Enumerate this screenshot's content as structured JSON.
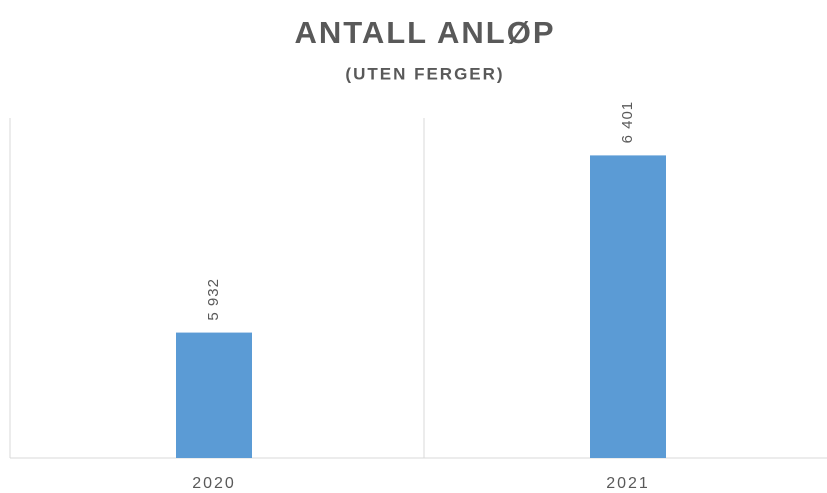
{
  "chart_data": {
    "type": "bar",
    "title": "ANTALL ANLØP",
    "subtitle": "(UTEN FERGER)",
    "categories": [
      "2020",
      "2021"
    ],
    "values": [
      5932,
      6401
    ],
    "value_labels": [
      "5 932",
      "6 401"
    ],
    "color": "#5b9bd5",
    "ylim": [
      5600,
      6500
    ],
    "grid": true
  }
}
